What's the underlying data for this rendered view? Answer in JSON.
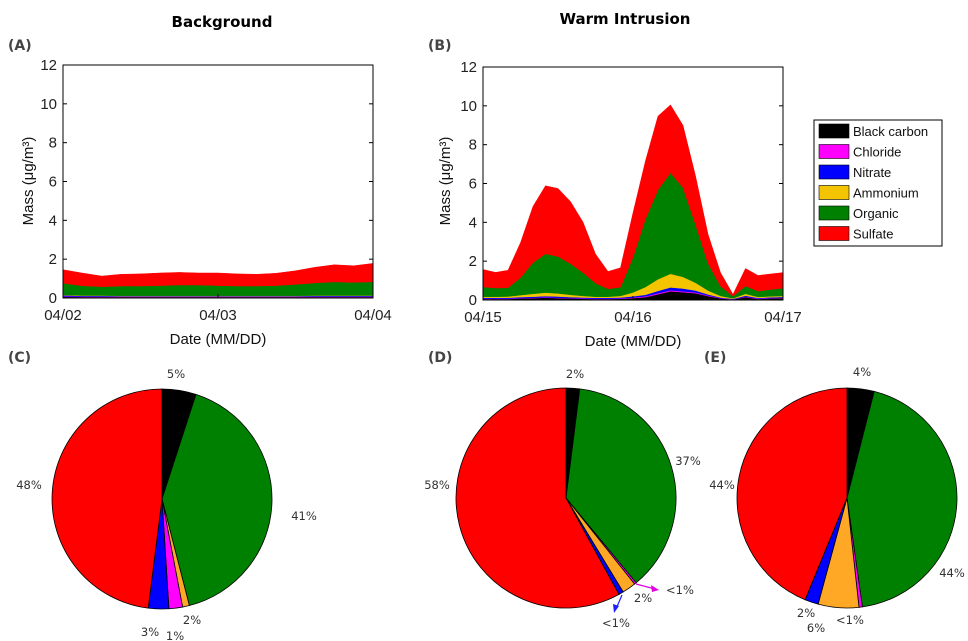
{
  "panels": {
    "A": {
      "label": "(A)",
      "title": "Background",
      "xlabel": "Date (MM/DD)",
      "ylabel": "Mass (μg/m³)"
    },
    "B": {
      "label": "(B)",
      "title": "Warm Intrusion",
      "xlabel": "Date (MM/DD)",
      "ylabel": "Mass (μg/m³)"
    },
    "C": {
      "label": "(C)"
    },
    "D": {
      "label": "(D)"
    },
    "E": {
      "label": "(E)"
    }
  },
  "legend": [
    {
      "name": "Black carbon",
      "color": "#000000"
    },
    {
      "name": "Chloride",
      "color": "#ff00ff"
    },
    {
      "name": "Nitrate",
      "color": "#0000ff"
    },
    {
      "name": "Ammonium",
      "color": "#f5c400"
    },
    {
      "name": "Organic",
      "color": "#008000"
    },
    {
      "name": "Sulfate",
      "color": "#ff0000"
    }
  ],
  "chart_data": [
    {
      "id": "A",
      "type": "area",
      "title": "Background",
      "xlabel": "Date (MM/DD)",
      "ylabel": "Mass (μg/m³)",
      "ylim": [
        0,
        12
      ],
      "yticks": [
        0,
        2,
        4,
        6,
        8,
        10,
        12
      ],
      "xticks": [
        "04/02",
        "04/03",
        "04/04"
      ],
      "x": [
        "04/02 00:00",
        "04/02 03:00",
        "04/02 06:00",
        "04/02 09:00",
        "04/02 12:00",
        "04/02 15:00",
        "04/02 18:00",
        "04/02 21:00",
        "04/03 00:00",
        "04/03 03:00",
        "04/03 06:00",
        "04/03 09:00",
        "04/03 12:00",
        "04/03 15:00",
        "04/03 18:00",
        "04/03 21:00",
        "04/04 00:00"
      ],
      "stacked": true,
      "series": [
        {
          "name": "Black carbon",
          "values": [
            0.06,
            0.05,
            0.05,
            0.05,
            0.05,
            0.05,
            0.05,
            0.05,
            0.05,
            0.05,
            0.05,
            0.05,
            0.05,
            0.05,
            0.05,
            0.05,
            0.05
          ]
        },
        {
          "name": "Chloride",
          "values": [
            0.02,
            0.02,
            0.02,
            0.02,
            0.02,
            0.02,
            0.02,
            0.02,
            0.02,
            0.02,
            0.02,
            0.02,
            0.02,
            0.02,
            0.02,
            0.02,
            0.02
          ]
        },
        {
          "name": "Nitrate",
          "values": [
            0.06,
            0.04,
            0.04,
            0.03,
            0.03,
            0.03,
            0.03,
            0.03,
            0.03,
            0.03,
            0.03,
            0.03,
            0.03,
            0.04,
            0.04,
            0.04,
            0.04
          ]
        },
        {
          "name": "Ammonium",
          "values": [
            0.02,
            0.02,
            0.02,
            0.02,
            0.02,
            0.02,
            0.02,
            0.02,
            0.02,
            0.02,
            0.02,
            0.02,
            0.02,
            0.02,
            0.02,
            0.02,
            0.02
          ]
        },
        {
          "name": "Organic",
          "values": [
            0.6,
            0.5,
            0.45,
            0.5,
            0.5,
            0.52,
            0.55,
            0.55,
            0.52,
            0.5,
            0.5,
            0.52,
            0.58,
            0.65,
            0.7,
            0.68,
            0.7
          ]
        },
        {
          "name": "Sulfate",
          "values": [
            0.7,
            0.65,
            0.55,
            0.6,
            0.62,
            0.65,
            0.65,
            0.62,
            0.65,
            0.62,
            0.6,
            0.63,
            0.7,
            0.8,
            0.88,
            0.85,
            0.95
          ]
        }
      ]
    },
    {
      "id": "B",
      "type": "area",
      "title": "Warm Intrusion",
      "xlabel": "Date (MM/DD)",
      "ylabel": "Mass (μg/m³)",
      "ylim": [
        0,
        12
      ],
      "yticks": [
        0,
        2,
        4,
        6,
        8,
        10,
        12
      ],
      "xticks": [
        "04/15",
        "04/16",
        "04/17"
      ],
      "x": [
        "04/15 00:00",
        "04/15 02:00",
        "04/15 04:00",
        "04/15 06:00",
        "04/15 08:00",
        "04/15 10:00",
        "04/15 12:00",
        "04/15 14:00",
        "04/15 16:00",
        "04/15 18:00",
        "04/15 20:00",
        "04/15 22:00",
        "04/16 00:00",
        "04/16 02:00",
        "04/16 04:00",
        "04/16 06:00",
        "04/16 08:00",
        "04/16 10:00",
        "04/16 12:00",
        "04/16 14:00",
        "04/16 16:00",
        "04/16 18:00",
        "04/16 20:00",
        "04/16 22:00",
        "04/17 00:00"
      ],
      "stacked": true,
      "series": [
        {
          "name": "Black carbon",
          "values": [
            0.05,
            0.05,
            0.05,
            0.08,
            0.1,
            0.12,
            0.1,
            0.08,
            0.06,
            0.05,
            0.05,
            0.06,
            0.1,
            0.15,
            0.3,
            0.45,
            0.4,
            0.35,
            0.2,
            0.08,
            0.03,
            0.15,
            0.05,
            0.08,
            0.1
          ]
        },
        {
          "name": "Chloride",
          "values": [
            0.02,
            0.02,
            0.02,
            0.02,
            0.02,
            0.02,
            0.02,
            0.02,
            0.02,
            0.02,
            0.02,
            0.02,
            0.03,
            0.04,
            0.05,
            0.05,
            0.05,
            0.04,
            0.03,
            0.02,
            0.01,
            0.02,
            0.02,
            0.02,
            0.02
          ]
        },
        {
          "name": "Nitrate",
          "values": [
            0.05,
            0.05,
            0.05,
            0.05,
            0.05,
            0.06,
            0.06,
            0.05,
            0.05,
            0.05,
            0.05,
            0.05,
            0.06,
            0.08,
            0.12,
            0.15,
            0.14,
            0.1,
            0.06,
            0.03,
            0.02,
            0.05,
            0.04,
            0.04,
            0.04
          ]
        },
        {
          "name": "Ammonium",
          "values": [
            0.05,
            0.05,
            0.06,
            0.1,
            0.15,
            0.18,
            0.16,
            0.12,
            0.08,
            0.05,
            0.05,
            0.08,
            0.2,
            0.4,
            0.6,
            0.7,
            0.6,
            0.4,
            0.2,
            0.08,
            0.03,
            0.1,
            0.05,
            0.05,
            0.05
          ]
        },
        {
          "name": "Organic",
          "values": [
            0.5,
            0.45,
            0.45,
            0.9,
            1.6,
            2.0,
            1.9,
            1.6,
            1.2,
            0.7,
            0.4,
            0.45,
            1.8,
            3.5,
            4.6,
            5.2,
            4.6,
            3.0,
            1.4,
            0.5,
            0.1,
            0.4,
            0.3,
            0.35,
            0.4
          ]
        },
        {
          "name": "Sulfate",
          "values": [
            0.9,
            0.8,
            0.9,
            1.8,
            2.9,
            3.5,
            3.5,
            3.2,
            2.6,
            1.5,
            0.9,
            1.0,
            2.3,
            3.0,
            3.8,
            3.5,
            3.2,
            2.5,
            1.5,
            0.7,
            0.1,
            0.9,
            0.8,
            0.8,
            0.8
          ]
        }
      ]
    },
    {
      "id": "C",
      "type": "pie",
      "slices": [
        {
          "name": "Black carbon",
          "value": 5,
          "label": "5%"
        },
        {
          "name": "Organic",
          "value": 41,
          "label": "41%"
        },
        {
          "name": "Ammonium",
          "value": 1,
          "label": "1%"
        },
        {
          "name": "Chloride",
          "value": 2,
          "label": "2%"
        },
        {
          "name": "Nitrate",
          "value": 3,
          "label": "3%"
        },
        {
          "name": "Sulfate",
          "value": 48,
          "label": "48%"
        }
      ]
    },
    {
      "id": "D",
      "type": "pie",
      "slices": [
        {
          "name": "Black carbon",
          "value": 2,
          "label": "2%"
        },
        {
          "name": "Organic",
          "value": 37,
          "label": "37%"
        },
        {
          "name": "Chloride",
          "value": 0.3,
          "label": "<1%"
        },
        {
          "name": "Ammonium",
          "value": 2,
          "label": "2%"
        },
        {
          "name": "Nitrate",
          "value": 0.7,
          "label": "<1%"
        },
        {
          "name": "Sulfate",
          "value": 58,
          "label": "58%"
        }
      ]
    },
    {
      "id": "E",
      "type": "pie",
      "slices": [
        {
          "name": "Black carbon",
          "value": 4,
          "label": "4%"
        },
        {
          "name": "Organic",
          "value": 44,
          "label": "44%"
        },
        {
          "name": "Chloride",
          "value": 0.5,
          "label": "<1%"
        },
        {
          "name": "Ammonium",
          "value": 6,
          "label": "6%"
        },
        {
          "name": "Nitrate",
          "value": 2,
          "label": "2%"
        },
        {
          "name": "Sulfate",
          "value": 44,
          "label": "44%"
        }
      ]
    }
  ]
}
